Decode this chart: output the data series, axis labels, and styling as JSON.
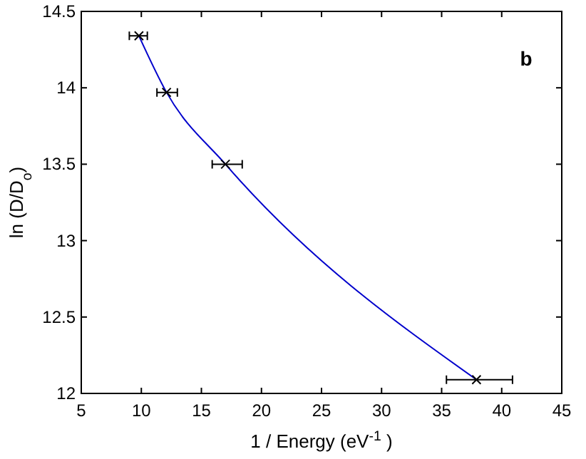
{
  "chart_data": {
    "type": "scatter",
    "xlabel": "1 / Energy (eV$^{-1}$ )",
    "ylabel": "ln (D/D$_{o}$)",
    "annotations": [
      "b"
    ],
    "xlim": [
      5,
      45
    ],
    "xticks": [
      5,
      10,
      15,
      20,
      25,
      30,
      35,
      40,
      45
    ],
    "ylim": [
      12,
      14.5
    ],
    "yticks": [
      12,
      12.5,
      13,
      13.5,
      14,
      14.5
    ],
    "grid": false,
    "series": [
      {
        "type": "line",
        "color": "#0000cc",
        "marker": "none",
        "x": [
          9.8,
          12.1,
          17.0,
          37.9
        ],
        "values": [
          14.34,
          13.97,
          13.5,
          12.09
        ]
      },
      {
        "color": "#000000",
        "marker": "cross",
        "x": [
          9.8,
          12.1,
          17.0,
          37.9
        ],
        "values": [
          14.34,
          13.97,
          13.5,
          12.09
        ],
        "xerrors": [
          [
            9.0,
            10.5
          ],
          [
            11.3,
            13.0
          ],
          [
            15.9,
            18.4
          ],
          [
            35.4,
            40.9
          ]
        ]
      }
    ]
  }
}
